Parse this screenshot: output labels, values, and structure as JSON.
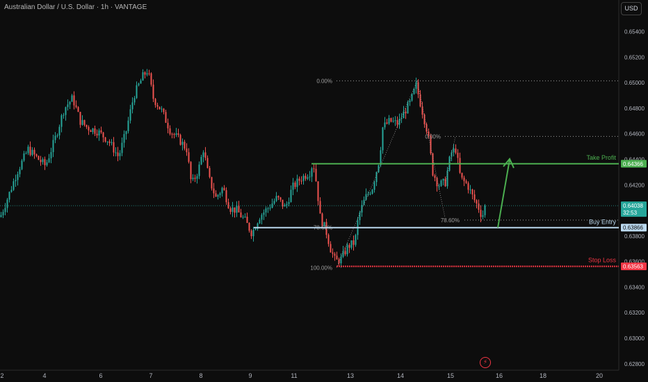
{
  "header": {
    "title": "Australian Dollar / U.S. Dollar · 1h · VANTAGE",
    "currency_button": "USD"
  },
  "colors": {
    "background": "#0d0d0d",
    "up_candle": "#26a69a",
    "down_candle": "#ef5350",
    "take_profit": "#4caf50",
    "buy_entry": "#bbd9ef",
    "stop_loss": "#f23645",
    "fib_line": "#9e9e9e"
  },
  "icons": [
    "lightning-icon"
  ],
  "chart_data": {
    "type": "candlestick",
    "symbol": "AUDUSD",
    "timeframe": "1h",
    "ylim": [
      0.6275,
      0.6555
    ],
    "y_ticks": [
      "0.65400",
      "0.65200",
      "0.65000",
      "0.64800",
      "0.64600",
      "0.64400",
      "0.64200",
      "0.64000",
      "0.63800",
      "0.63600",
      "0.63400",
      "0.63200",
      "0.63000",
      "0.62800"
    ],
    "x_ticks": [
      "2",
      "4",
      "6",
      "7",
      "8",
      "9",
      "11",
      "13",
      "14",
      "15",
      "16",
      "18",
      "20"
    ],
    "current_price": {
      "label": "0.64038",
      "countdown": "32:53",
      "value": 0.64038
    },
    "levels": {
      "take_profit": {
        "label": "Take Profit",
        "price": 0.64366,
        "price_label": "0.64366"
      },
      "buy_entry": {
        "label": "Buy Entry",
        "price": 0.63866,
        "price_label": "0.63866"
      },
      "stop_loss": {
        "label": "Stop Loss",
        "price": 0.63563,
        "price_label": "0.63563"
      }
    },
    "fib_left": [
      {
        "label": "0.00%",
        "price": 0.65015
      },
      {
        "label": "78.60%",
        "price": 0.63866
      },
      {
        "label": "100.00%",
        "price": 0.63553
      }
    ],
    "fib_right": [
      {
        "label": "0.00%",
        "price": 0.6458
      },
      {
        "label": "78.60%",
        "price": 0.63925
      }
    ],
    "price_path": [
      [
        0,
        0.6395
      ],
      [
        12,
        0.6412
      ],
      [
        24,
        0.643
      ],
      [
        40,
        0.6448
      ],
      [
        55,
        0.644
      ],
      [
        65,
        0.6435
      ],
      [
        78,
        0.6455
      ],
      [
        92,
        0.648
      ],
      [
        104,
        0.6488
      ],
      [
        115,
        0.647
      ],
      [
        125,
        0.6465
      ],
      [
        140,
        0.6462
      ],
      [
        155,
        0.6455
      ],
      [
        170,
        0.6442
      ],
      [
        180,
        0.646
      ],
      [
        192,
        0.649
      ],
      [
        205,
        0.6505
      ],
      [
        212,
        0.651
      ],
      [
        220,
        0.6488
      ],
      [
        232,
        0.6478
      ],
      [
        245,
        0.6462
      ],
      [
        258,
        0.6455
      ],
      [
        268,
        0.6448
      ],
      [
        275,
        0.642
      ],
      [
        285,
        0.6432
      ],
      [
        292,
        0.6448
      ],
      [
        300,
        0.6425
      ],
      [
        310,
        0.641
      ],
      [
        320,
        0.6418
      ],
      [
        330,
        0.6402
      ],
      [
        340,
        0.64
      ],
      [
        352,
        0.6392
      ],
      [
        362,
        0.6382
      ],
      [
        372,
        0.6395
      ],
      [
        385,
        0.6402
      ],
      [
        398,
        0.641
      ],
      [
        410,
        0.6402
      ],
      [
        420,
        0.6418
      ],
      [
        432,
        0.6425
      ],
      [
        445,
        0.643
      ],
      [
        450,
        0.6438
      ],
      [
        455,
        0.642
      ],
      [
        460,
        0.6395
      ],
      [
        468,
        0.6385
      ],
      [
        475,
        0.637
      ],
      [
        482,
        0.636
      ],
      [
        490,
        0.6362
      ],
      [
        500,
        0.6372
      ],
      [
        510,
        0.6375
      ],
      [
        515,
        0.6395
      ],
      [
        525,
        0.641
      ],
      [
        535,
        0.6418
      ],
      [
        545,
        0.644
      ],
      [
        550,
        0.6465
      ],
      [
        560,
        0.647
      ],
      [
        572,
        0.6468
      ],
      [
        582,
        0.6478
      ],
      [
        590,
        0.6485
      ],
      [
        598,
        0.6498
      ],
      [
        605,
        0.6482
      ],
      [
        615,
        0.646
      ],
      [
        622,
        0.643
      ],
      [
        630,
        0.642
      ],
      [
        640,
        0.6422
      ],
      [
        648,
        0.6445
      ],
      [
        655,
        0.6448
      ],
      [
        662,
        0.6425
      ],
      [
        672,
        0.642
      ],
      [
        680,
        0.641
      ],
      [
        688,
        0.6402
      ],
      [
        693,
        0.6395
      ],
      [
        697,
        0.6403
      ]
    ]
  }
}
